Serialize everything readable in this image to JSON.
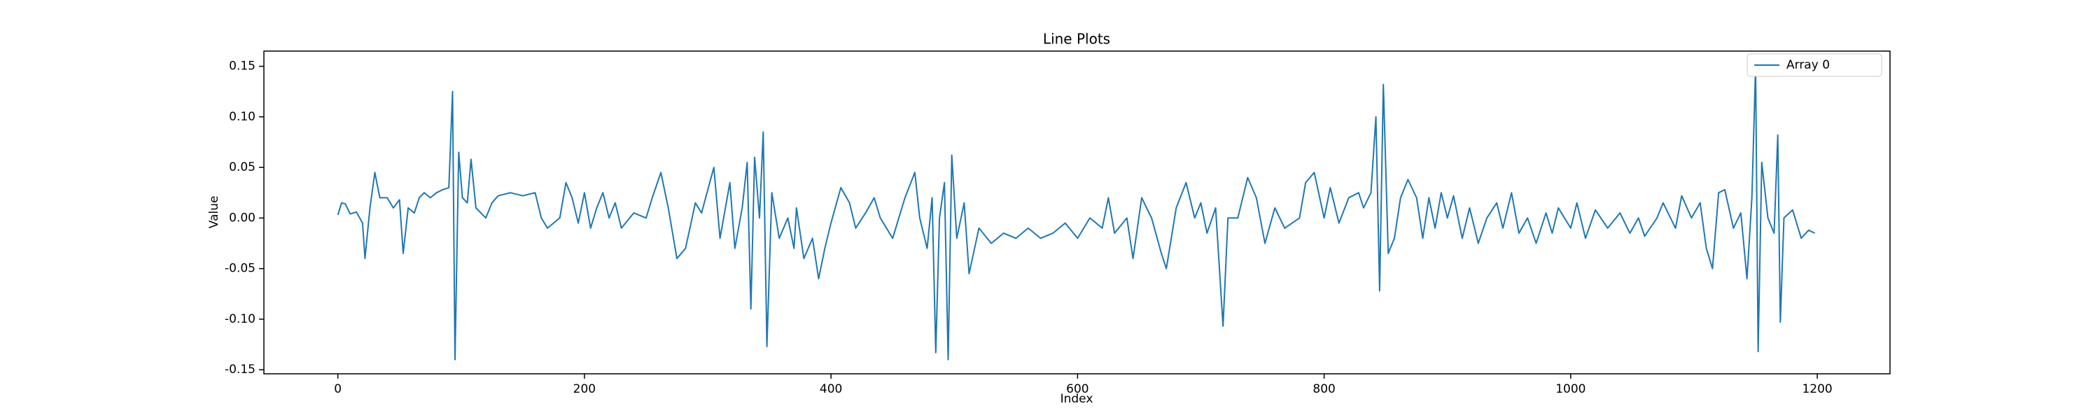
{
  "chart_data": {
    "type": "line",
    "title": "Line Plots",
    "x_label": "Index",
    "y_label": "Value",
    "x": [
      0,
      3,
      6,
      10,
      15,
      20,
      22,
      26,
      30,
      34,
      40,
      45,
      50,
      53,
      57,
      62,
      66,
      70,
      75,
      80,
      85,
      90,
      93,
      95,
      98,
      101,
      105,
      108,
      112,
      120,
      125,
      130,
      140,
      150,
      160,
      165,
      170,
      180,
      185,
      190,
      195,
      200,
      205,
      210,
      215,
      220,
      225,
      230,
      240,
      250,
      255,
      262,
      268,
      275,
      282,
      290,
      295,
      305,
      310,
      318,
      322,
      328,
      332,
      335,
      338,
      342,
      345,
      348,
      352,
      358,
      365,
      370,
      372,
      378,
      385,
      390,
      395,
      400,
      408,
      415,
      420,
      428,
      435,
      440,
      450,
      460,
      468,
      472,
      478,
      482,
      485,
      488,
      492,
      495,
      498,
      502,
      508,
      512,
      520,
      530,
      540,
      550,
      560,
      570,
      580,
      590,
      600,
      610,
      620,
      625,
      630,
      640,
      645,
      652,
      660,
      668,
      672,
      680,
      688,
      695,
      700,
      705,
      712,
      718,
      722,
      730,
      738,
      745,
      752,
      760,
      768,
      780,
      785,
      792,
      800,
      805,
      812,
      820,
      828,
      832,
      838,
      842,
      845,
      848,
      852,
      857,
      862,
      868,
      875,
      880,
      885,
      890,
      895,
      900,
      905,
      912,
      918,
      925,
      932,
      940,
      945,
      952,
      958,
      965,
      972,
      980,
      985,
      990,
      1000,
      1005,
      1012,
      1020,
      1030,
      1040,
      1048,
      1055,
      1060,
      1070,
      1075,
      1085,
      1090,
      1098,
      1105,
      1110,
      1115,
      1120,
      1125,
      1132,
      1138,
      1143,
      1147,
      1150,
      1152,
      1155,
      1160,
      1165,
      1168,
      1170,
      1173,
      1180,
      1187,
      1193,
      1198
    ],
    "series": [
      {
        "name": "Array 0",
        "color": "#1f77b4",
        "values": [
          0.003,
          0.015,
          0.014,
          0.004,
          0.006,
          -0.005,
          -0.04,
          0.01,
          0.045,
          0.02,
          0.02,
          0.01,
          0.018,
          -0.035,
          0.01,
          0.005,
          0.02,
          0.025,
          0.02,
          0.025,
          0.028,
          0.03,
          0.125,
          -0.14,
          0.065,
          0.02,
          0.015,
          0.058,
          0.01,
          0.0,
          0.015,
          0.022,
          0.025,
          0.022,
          0.025,
          0.0,
          -0.01,
          0.0,
          0.035,
          0.02,
          -0.005,
          0.025,
          -0.01,
          0.01,
          0.025,
          0.0,
          0.015,
          -0.01,
          0.005,
          0.0,
          0.02,
          0.045,
          0.01,
          -0.04,
          -0.03,
          0.015,
          0.005,
          0.05,
          -0.02,
          0.035,
          -0.03,
          0.01,
          0.055,
          -0.09,
          0.06,
          0.0,
          0.085,
          -0.127,
          0.025,
          -0.02,
          0.0,
          -0.03,
          0.01,
          -0.04,
          -0.02,
          -0.06,
          -0.03,
          -0.005,
          0.03,
          0.015,
          -0.01,
          0.005,
          0.02,
          0.0,
          -0.02,
          0.02,
          0.045,
          0.0,
          -0.03,
          0.02,
          -0.133,
          0.0,
          0.035,
          -0.14,
          0.062,
          -0.02,
          0.015,
          -0.055,
          -0.01,
          -0.025,
          -0.015,
          -0.02,
          -0.01,
          -0.02,
          -0.015,
          -0.005,
          -0.02,
          0.0,
          -0.01,
          0.02,
          -0.015,
          0.0,
          -0.04,
          0.02,
          0.0,
          -0.035,
          -0.05,
          0.01,
          0.035,
          0.0,
          0.015,
          -0.015,
          0.01,
          -0.107,
          0.0,
          0.0,
          0.04,
          0.02,
          -0.025,
          0.01,
          -0.01,
          0.0,
          0.035,
          0.045,
          0.0,
          0.03,
          -0.005,
          0.02,
          0.025,
          0.01,
          0.025,
          0.1,
          -0.072,
          0.132,
          -0.035,
          -0.02,
          0.02,
          0.038,
          0.02,
          -0.02,
          0.02,
          -0.01,
          0.025,
          0.0,
          0.022,
          -0.02,
          0.01,
          -0.025,
          0.0,
          0.015,
          -0.01,
          0.025,
          -0.015,
          0.0,
          -0.025,
          0.005,
          -0.015,
          0.01,
          -0.01,
          0.015,
          -0.02,
          0.008,
          -0.01,
          0.005,
          -0.015,
          0.0,
          -0.018,
          0.0,
          0.015,
          -0.01,
          0.022,
          0.0,
          0.015,
          -0.03,
          -0.05,
          0.025,
          0.028,
          -0.01,
          0.005,
          -0.06,
          0.02,
          0.15,
          -0.132,
          0.055,
          0.0,
          -0.015,
          0.082,
          -0.103,
          0.0,
          0.008,
          -0.02,
          -0.012,
          -0.015
        ]
      }
    ],
    "xlim": [
      -60,
      1259
    ],
    "ylim": [
      -0.154,
      0.165
    ],
    "xticks": [
      0,
      200,
      400,
      600,
      800,
      1000,
      1200
    ],
    "yticks": [
      -0.15,
      {
        "value": -0.1,
        "label": "-0.10"
      },
      -0.05,
      {
        "value": 0,
        "label": "0.00"
      },
      0.05,
      {
        "value": 0.1,
        "label": "0.10"
      },
      0.15
    ],
    "legend": "upper right"
  }
}
